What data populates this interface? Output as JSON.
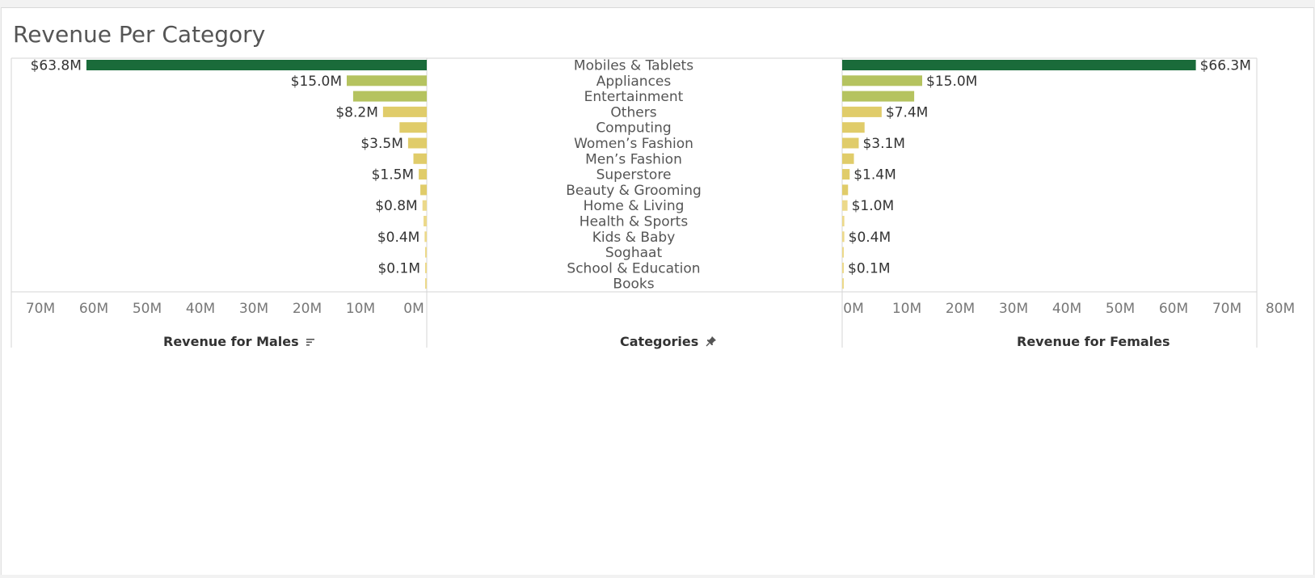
{
  "page": {
    "title": "Revenue Per Category"
  },
  "chart_data": {
    "type": "bar",
    "layout": "butterfly",
    "title": "Revenue Per Category",
    "categories": [
      "Mobiles & Tablets",
      "Appliances",
      "Entertainment",
      "Others",
      "Computing",
      "Women’s Fashion",
      "Men’s Fashion",
      "Superstore",
      "Beauty & Grooming",
      "Home & Living",
      "Health & Sports",
      "Kids & Baby",
      "Soghaat",
      "School & Education",
      "Books"
    ],
    "series": [
      {
        "name": "Revenue for Males",
        "values": [
          63.8,
          15.0,
          13.8,
          8.2,
          5.1,
          3.5,
          2.5,
          1.5,
          1.2,
          0.8,
          0.6,
          0.4,
          0.3,
          0.1,
          0.05
        ],
        "labels": [
          "$63.8M",
          "$15.0M",
          "",
          "$8.2M",
          "",
          "$3.5M",
          "",
          "$1.5M",
          "",
          "$0.8M",
          "",
          "$0.4M",
          "",
          "$0.1M",
          ""
        ]
      },
      {
        "name": "Revenue for Females",
        "values": [
          66.3,
          15.0,
          13.5,
          7.4,
          4.2,
          3.1,
          2.2,
          1.4,
          1.1,
          1.0,
          0.4,
          0.4,
          0.2,
          0.1,
          0.05
        ],
        "labels": [
          "$66.3M",
          "$15.0M",
          "",
          "$7.4M",
          "",
          "$3.1M",
          "",
          "$1.4M",
          "",
          "$1.0M",
          "",
          "$0.4M",
          "",
          "$0.1M",
          ""
        ]
      }
    ],
    "xlim": [
      0,
      80
    ],
    "left_ticks": [
      "70M",
      "60M",
      "50M",
      "40M",
      "30M",
      "20M",
      "10M",
      "0M"
    ],
    "right_ticks": [
      "0M",
      "10M",
      "20M",
      "30M",
      "40M",
      "50M",
      "60M",
      "70M",
      "80M"
    ],
    "axis_titles": {
      "left": "Revenue for Males",
      "center": "Categories",
      "right": "Revenue for Females"
    },
    "colors": {
      "high": "#1a6b3a",
      "mid": "#b5c35f",
      "low": "#e0cc6a",
      "lowest": "#ecd98a"
    },
    "icons": {
      "left": "sort-icon",
      "center": "pin-icon"
    }
  }
}
